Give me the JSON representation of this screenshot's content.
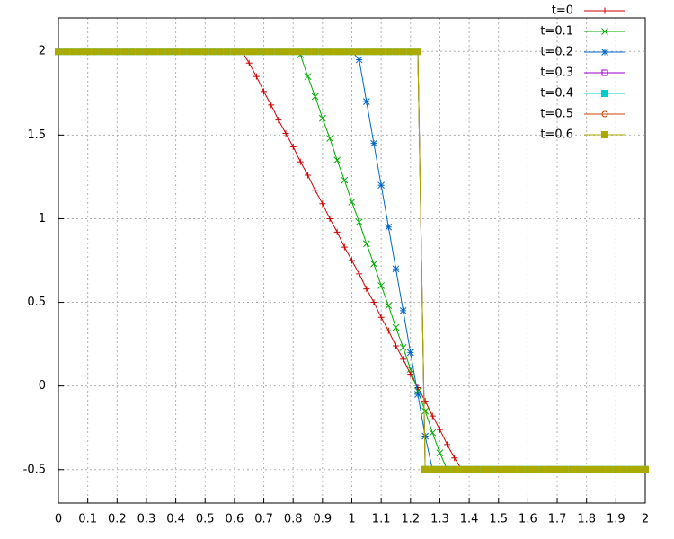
{
  "chart_data": {
    "type": "line",
    "x": [
      0,
      0.025,
      0.05,
      0.075,
      0.1,
      0.125,
      0.15,
      0.175,
      0.2,
      0.225,
      0.25,
      0.275,
      0.3,
      0.325,
      0.35,
      0.375,
      0.4,
      0.425,
      0.45,
      0.475,
      0.5,
      0.525,
      0.55,
      0.575,
      0.6,
      0.625,
      0.65,
      0.675,
      0.7,
      0.725,
      0.75,
      0.775,
      0.8,
      0.825,
      0.85,
      0.875,
      0.9,
      0.925,
      0.95,
      0.975,
      1,
      1.025,
      1.05,
      1.075,
      1.1,
      1.125,
      1.15,
      1.175,
      1.2,
      1.225,
      1.25,
      1.275,
      1.3,
      1.325,
      1.35,
      1.375,
      1.4,
      1.425,
      1.45,
      1.475,
      1.5,
      1.525,
      1.55,
      1.575,
      1.6,
      1.625,
      1.65,
      1.675,
      1.7,
      1.725,
      1.75,
      1.775,
      1.8,
      1.825,
      1.85,
      1.875,
      1.9,
      1.925,
      1.95,
      1.975,
      2
    ],
    "series": [
      {
        "name": "t=0",
        "color": "#cc0000",
        "marker": "plus",
        "values": [
          2,
          2,
          2,
          2,
          2,
          2,
          2,
          2,
          2,
          2,
          2,
          2,
          2,
          2,
          2,
          2,
          2,
          2,
          2,
          2,
          2,
          2,
          2,
          2,
          2,
          2,
          1.93,
          1.85,
          1.76,
          1.68,
          1.59,
          1.51,
          1.43,
          1.34,
          1.26,
          1.17,
          1.09,
          1,
          0.92,
          0.83,
          0.75,
          0.67,
          0.58,
          0.5,
          0.41,
          0.33,
          0.24,
          0.16,
          0.07,
          -0.01,
          -0.09,
          -0.18,
          -0.26,
          -0.35,
          -0.43,
          -0.5,
          -0.5,
          -0.5,
          -0.5,
          -0.5,
          -0.5,
          -0.5,
          -0.5,
          -0.5,
          -0.5,
          -0.5,
          -0.5,
          -0.5,
          -0.5,
          -0.5,
          -0.5,
          -0.5,
          -0.5,
          -0.5,
          -0.5,
          -0.5,
          -0.5,
          -0.5,
          -0.5,
          -0.5,
          -0.5
        ]
      },
      {
        "name": "t=0.1",
        "color": "#00aa00",
        "marker": "cross",
        "values": [
          2,
          2,
          2,
          2,
          2,
          2,
          2,
          2,
          2,
          2,
          2,
          2,
          2,
          2,
          2,
          2,
          2,
          2,
          2,
          2,
          2,
          2,
          2,
          2,
          2,
          2,
          2,
          2,
          2,
          2,
          2,
          2,
          2,
          1.98,
          1.85,
          1.73,
          1.6,
          1.48,
          1.35,
          1.23,
          1.1,
          0.98,
          0.85,
          0.73,
          0.6,
          0.48,
          0.35,
          0.23,
          0.1,
          -0.03,
          -0.15,
          -0.28,
          -0.4,
          -0.5,
          -0.5,
          -0.5,
          -0.5,
          -0.5,
          -0.5,
          -0.5,
          -0.5,
          -0.5,
          -0.5,
          -0.5,
          -0.5,
          -0.5,
          -0.5,
          -0.5,
          -0.5,
          -0.5,
          -0.5,
          -0.5,
          -0.5,
          -0.5,
          -0.5,
          -0.5,
          -0.5,
          -0.5,
          -0.5,
          -0.5,
          -0.5
        ]
      },
      {
        "name": "t=0.2",
        "color": "#0066cc",
        "marker": "star",
        "values": [
          2,
          2,
          2,
          2,
          2,
          2,
          2,
          2,
          2,
          2,
          2,
          2,
          2,
          2,
          2,
          2,
          2,
          2,
          2,
          2,
          2,
          2,
          2,
          2,
          2,
          2,
          2,
          2,
          2,
          2,
          2,
          2,
          2,
          2,
          2,
          2,
          2,
          2,
          2,
          2,
          2,
          1.95,
          1.7,
          1.45,
          1.2,
          0.95,
          0.7,
          0.45,
          0.2,
          -0.05,
          -0.3,
          -0.5,
          -0.5,
          -0.5,
          -0.5,
          -0.5,
          -0.5,
          -0.5,
          -0.5,
          -0.5,
          -0.5,
          -0.5,
          -0.5,
          -0.5,
          -0.5,
          -0.5,
          -0.5,
          -0.5,
          -0.5,
          -0.5,
          -0.5,
          -0.5,
          -0.5,
          -0.5,
          -0.5,
          -0.5,
          -0.5,
          -0.5,
          -0.5,
          -0.5,
          -0.5
        ]
      },
      {
        "name": "t=0.3",
        "color": "#9900cc",
        "marker": "open-square",
        "values": [
          2,
          2,
          2,
          2,
          2,
          2,
          2,
          2,
          2,
          2,
          2,
          2,
          2,
          2,
          2,
          2,
          2,
          2,
          2,
          2,
          2,
          2,
          2,
          2,
          2,
          2,
          2,
          2,
          2,
          2,
          2,
          2,
          2,
          2,
          2,
          2,
          2,
          2,
          2,
          2,
          2,
          2,
          2,
          2,
          2,
          2,
          2,
          2,
          2,
          2,
          -0.5,
          -0.5,
          -0.5,
          -0.5,
          -0.5,
          -0.5,
          -0.5,
          -0.5,
          -0.5,
          -0.5,
          -0.5,
          -0.5,
          -0.5,
          -0.5,
          -0.5,
          -0.5,
          -0.5,
          -0.5,
          -0.5,
          -0.5,
          -0.5,
          -0.5,
          -0.5,
          -0.5,
          -0.5,
          -0.5,
          -0.5,
          -0.5,
          -0.5,
          -0.5,
          -0.5
        ]
      },
      {
        "name": "t=0.4",
        "color": "#00cccc",
        "marker": "square",
        "values": [
          2,
          2,
          2,
          2,
          2,
          2,
          2,
          2,
          2,
          2,
          2,
          2,
          2,
          2,
          2,
          2,
          2,
          2,
          2,
          2,
          2,
          2,
          2,
          2,
          2,
          2,
          2,
          2,
          2,
          2,
          2,
          2,
          2,
          2,
          2,
          2,
          2,
          2,
          2,
          2,
          2,
          2,
          2,
          2,
          2,
          2,
          2,
          2,
          2,
          2,
          -0.5,
          -0.5,
          -0.5,
          -0.5,
          -0.5,
          -0.5,
          -0.5,
          -0.5,
          -0.5,
          -0.5,
          -0.5,
          -0.5,
          -0.5,
          -0.5,
          -0.5,
          -0.5,
          -0.5,
          -0.5,
          -0.5,
          -0.5,
          -0.5,
          -0.5,
          -0.5,
          -0.5,
          -0.5,
          -0.5,
          -0.5,
          -0.5,
          -0.5,
          -0.5,
          -0.5
        ]
      },
      {
        "name": "t=0.5",
        "color": "#cc4400",
        "marker": "open-circle",
        "values": [
          2,
          2,
          2,
          2,
          2,
          2,
          2,
          2,
          2,
          2,
          2,
          2,
          2,
          2,
          2,
          2,
          2,
          2,
          2,
          2,
          2,
          2,
          2,
          2,
          2,
          2,
          2,
          2,
          2,
          2,
          2,
          2,
          2,
          2,
          2,
          2,
          2,
          2,
          2,
          2,
          2,
          2,
          2,
          2,
          2,
          2,
          2,
          2,
          2,
          2,
          -0.5,
          -0.5,
          -0.5,
          -0.5,
          -0.5,
          -0.5,
          -0.5,
          -0.5,
          -0.5,
          -0.5,
          -0.5,
          -0.5,
          -0.5,
          -0.5,
          -0.5,
          -0.5,
          -0.5,
          -0.5,
          -0.5,
          -0.5,
          -0.5,
          -0.5,
          -0.5,
          -0.5,
          -0.5,
          -0.5,
          -0.5,
          -0.5,
          -0.5,
          -0.5,
          -0.5
        ]
      },
      {
        "name": "t=0.6",
        "color": "#aaaa00",
        "marker": "square",
        "values": [
          2,
          2,
          2,
          2,
          2,
          2,
          2,
          2,
          2,
          2,
          2,
          2,
          2,
          2,
          2,
          2,
          2,
          2,
          2,
          2,
          2,
          2,
          2,
          2,
          2,
          2,
          2,
          2,
          2,
          2,
          2,
          2,
          2,
          2,
          2,
          2,
          2,
          2,
          2,
          2,
          2,
          2,
          2,
          2,
          2,
          2,
          2,
          2,
          2,
          2,
          -0.5,
          -0.5,
          -0.5,
          -0.5,
          -0.5,
          -0.5,
          -0.5,
          -0.5,
          -0.5,
          -0.5,
          -0.5,
          -0.5,
          -0.5,
          -0.5,
          -0.5,
          -0.5,
          -0.5,
          -0.5,
          -0.5,
          -0.5,
          -0.5,
          -0.5,
          -0.5,
          -0.5,
          -0.5,
          -0.5,
          -0.5,
          -0.5,
          -0.5,
          -0.5,
          -0.5
        ]
      }
    ],
    "xlim": [
      0,
      2
    ],
    "xticks": [
      0,
      0.1,
      0.2,
      0.3,
      0.4,
      0.5,
      0.6,
      0.7,
      0.8,
      0.9,
      1,
      1.1,
      1.2,
      1.3,
      1.4,
      1.5,
      1.6,
      1.7,
      1.8,
      1.9,
      2
    ],
    "ylim": [
      -0.7,
      2.2
    ],
    "yticks": [
      -0.5,
      0,
      0.5,
      1,
      1.5,
      2
    ],
    "grid": true,
    "legend": "top-right"
  }
}
